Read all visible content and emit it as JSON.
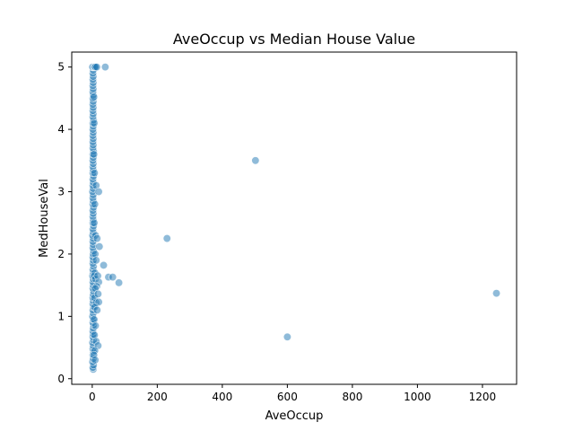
{
  "chart_data": {
    "type": "scatter",
    "title": "AveOccup vs Median House Value",
    "xlabel": "AveOccup",
    "ylabel": "MedHouseVal",
    "xlim": [
      -63,
      1305
    ],
    "ylim": [
      -0.09,
      5.24
    ],
    "xticks": [
      0,
      200,
      400,
      600,
      800,
      1000,
      1200
    ],
    "yticks": [
      0,
      1,
      2,
      3,
      4,
      5
    ],
    "grid": false,
    "legend": "none",
    "color": "#1f77b4",
    "points": [
      {
        "x": 3,
        "y": 0.15
      },
      {
        "x": 2,
        "y": 0.18
      },
      {
        "x": 4,
        "y": 0.22
      },
      {
        "x": 1,
        "y": 0.27
      },
      {
        "x": 3,
        "y": 0.32
      },
      {
        "x": 2,
        "y": 0.38
      },
      {
        "x": 4,
        "y": 0.43
      },
      {
        "x": 2,
        "y": 0.48
      },
      {
        "x": 3,
        "y": 0.53
      },
      {
        "x": 1,
        "y": 0.58
      },
      {
        "x": 4,
        "y": 0.62
      },
      {
        "x": 2,
        "y": 0.67
      },
      {
        "x": 3,
        "y": 0.71
      },
      {
        "x": 2,
        "y": 0.76
      },
      {
        "x": 3,
        "y": 0.81
      },
      {
        "x": 4,
        "y": 0.86
      },
      {
        "x": 2,
        "y": 0.9
      },
      {
        "x": 3,
        "y": 0.95
      },
      {
        "x": 1,
        "y": 1.0
      },
      {
        "x": 3,
        "y": 1.05
      },
      {
        "x": 2,
        "y": 1.1
      },
      {
        "x": 4,
        "y": 1.15
      },
      {
        "x": 2,
        "y": 1.2
      },
      {
        "x": 3,
        "y": 1.25
      },
      {
        "x": 2,
        "y": 1.3
      },
      {
        "x": 3,
        "y": 1.35
      },
      {
        "x": 4,
        "y": 1.4
      },
      {
        "x": 2,
        "y": 1.45
      },
      {
        "x": 3,
        "y": 1.5
      },
      {
        "x": 2,
        "y": 1.55
      },
      {
        "x": 3,
        "y": 1.6
      },
      {
        "x": 1,
        "y": 1.65
      },
      {
        "x": 3,
        "y": 1.7
      },
      {
        "x": 2,
        "y": 1.75
      },
      {
        "x": 4,
        "y": 1.8
      },
      {
        "x": 2,
        "y": 1.85
      },
      {
        "x": 3,
        "y": 1.9
      },
      {
        "x": 2,
        "y": 1.95
      },
      {
        "x": 3,
        "y": 2.0
      },
      {
        "x": 4,
        "y": 2.05
      },
      {
        "x": 2,
        "y": 2.1
      },
      {
        "x": 3,
        "y": 2.15
      },
      {
        "x": 2,
        "y": 2.2
      },
      {
        "x": 3,
        "y": 2.25
      },
      {
        "x": 1,
        "y": 2.3
      },
      {
        "x": 3,
        "y": 2.35
      },
      {
        "x": 2,
        "y": 2.4
      },
      {
        "x": 4,
        "y": 2.45
      },
      {
        "x": 2,
        "y": 2.5
      },
      {
        "x": 3,
        "y": 2.55
      },
      {
        "x": 2,
        "y": 2.6
      },
      {
        "x": 3,
        "y": 2.65
      },
      {
        "x": 2,
        "y": 2.7
      },
      {
        "x": 4,
        "y": 2.75
      },
      {
        "x": 2,
        "y": 2.8
      },
      {
        "x": 3,
        "y": 2.85
      },
      {
        "x": 2,
        "y": 2.9
      },
      {
        "x": 3,
        "y": 2.95
      },
      {
        "x": 1,
        "y": 3.0
      },
      {
        "x": 3,
        "y": 3.05
      },
      {
        "x": 2,
        "y": 3.1
      },
      {
        "x": 3,
        "y": 3.15
      },
      {
        "x": 2,
        "y": 3.2
      },
      {
        "x": 4,
        "y": 3.25
      },
      {
        "x": 2,
        "y": 3.3
      },
      {
        "x": 3,
        "y": 3.35
      },
      {
        "x": 2,
        "y": 3.4
      },
      {
        "x": 3,
        "y": 3.45
      },
      {
        "x": 2,
        "y": 3.5
      },
      {
        "x": 3,
        "y": 3.55
      },
      {
        "x": 2,
        "y": 3.6
      },
      {
        "x": 4,
        "y": 3.65
      },
      {
        "x": 2,
        "y": 3.7
      },
      {
        "x": 3,
        "y": 3.75
      },
      {
        "x": 2,
        "y": 3.8
      },
      {
        "x": 3,
        "y": 3.85
      },
      {
        "x": 2,
        "y": 3.9
      },
      {
        "x": 3,
        "y": 3.95
      },
      {
        "x": 2,
        "y": 4.0
      },
      {
        "x": 3,
        "y": 4.05
      },
      {
        "x": 2,
        "y": 4.1
      },
      {
        "x": 4,
        "y": 4.15
      },
      {
        "x": 2,
        "y": 4.2
      },
      {
        "x": 3,
        "y": 4.25
      },
      {
        "x": 2,
        "y": 4.3
      },
      {
        "x": 3,
        "y": 4.35
      },
      {
        "x": 2,
        "y": 4.4
      },
      {
        "x": 3,
        "y": 4.45
      },
      {
        "x": 2,
        "y": 4.5
      },
      {
        "x": 3,
        "y": 4.55
      },
      {
        "x": 2,
        "y": 4.6
      },
      {
        "x": 3,
        "y": 4.65
      },
      {
        "x": 2,
        "y": 4.7
      },
      {
        "x": 3,
        "y": 4.75
      },
      {
        "x": 2,
        "y": 4.8
      },
      {
        "x": 3,
        "y": 4.85
      },
      {
        "x": 2,
        "y": 4.9
      },
      {
        "x": 3,
        "y": 4.95
      },
      {
        "x": 2,
        "y": 5.0
      },
      {
        "x": 4,
        "y": 5.0
      },
      {
        "x": 1,
        "y": 5.0
      },
      {
        "x": 6,
        "y": 5.0
      },
      {
        "x": 8,
        "y": 5.0
      },
      {
        "x": 10,
        "y": 5.0
      },
      {
        "x": 14,
        "y": 5.0
      },
      {
        "x": 40,
        "y": 5.0
      },
      {
        "x": 5,
        "y": 4.52
      },
      {
        "x": 6,
        "y": 4.1
      },
      {
        "x": 5,
        "y": 3.6
      },
      {
        "x": 7,
        "y": 3.3
      },
      {
        "x": 12,
        "y": 3.1
      },
      {
        "x": 20,
        "y": 3.0
      },
      {
        "x": 8,
        "y": 2.8
      },
      {
        "x": 6,
        "y": 2.5
      },
      {
        "x": 10,
        "y": 2.3
      },
      {
        "x": 15,
        "y": 2.25
      },
      {
        "x": 22,
        "y": 2.12
      },
      {
        "x": 9,
        "y": 2.0
      },
      {
        "x": 12,
        "y": 1.9
      },
      {
        "x": 8,
        "y": 1.7
      },
      {
        "x": 6,
        "y": 1.65
      },
      {
        "x": 10,
        "y": 1.6
      },
      {
        "x": 17,
        "y": 1.65
      },
      {
        "x": 20,
        "y": 1.55
      },
      {
        "x": 14,
        "y": 1.48
      },
      {
        "x": 9,
        "y": 1.45
      },
      {
        "x": 7,
        "y": 1.3
      },
      {
        "x": 18,
        "y": 1.36
      },
      {
        "x": 12,
        "y": 1.22
      },
      {
        "x": 20,
        "y": 1.23
      },
      {
        "x": 8,
        "y": 1.15
      },
      {
        "x": 15,
        "y": 1.1
      },
      {
        "x": 6,
        "y": 0.95
      },
      {
        "x": 10,
        "y": 0.85
      },
      {
        "x": 7,
        "y": 0.7
      },
      {
        "x": 12,
        "y": 0.6
      },
      {
        "x": 18,
        "y": 0.53
      },
      {
        "x": 8,
        "y": 0.45
      },
      {
        "x": 5,
        "y": 0.38
      },
      {
        "x": 9,
        "y": 0.3
      },
      {
        "x": 35,
        "y": 1.82
      },
      {
        "x": 50,
        "y": 1.63
      },
      {
        "x": 63,
        "y": 1.63
      },
      {
        "x": 82,
        "y": 1.54
      },
      {
        "x": 230,
        "y": 2.25
      },
      {
        "x": 502,
        "y": 3.5
      },
      {
        "x": 600,
        "y": 0.67
      },
      {
        "x": 1243,
        "y": 1.37
      }
    ]
  }
}
